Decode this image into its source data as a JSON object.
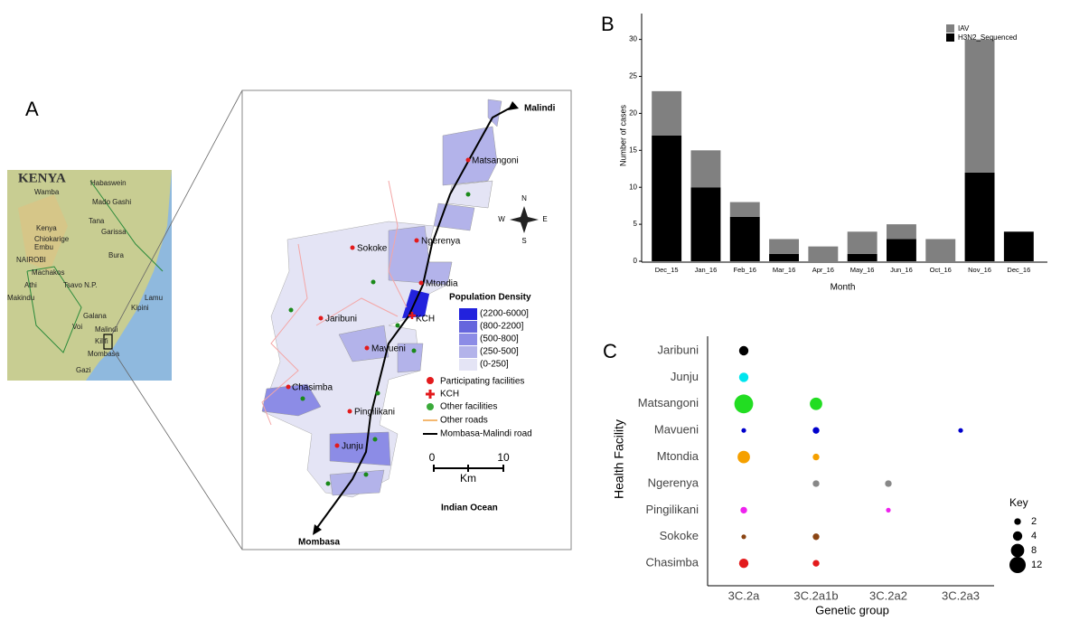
{
  "map": {
    "panel_label": "A",
    "inset": {
      "country": "KENYA",
      "places": [
        "Habaswein",
        "Wamba",
        "Mado Gashi",
        "Tana",
        "Kenya",
        "Garissa",
        "Chiokarige",
        "Embu",
        "Bura",
        "NAIROBI",
        "Machakos",
        "Athi",
        "Tsavo N.P.",
        "Makindu",
        "Lamu",
        "Kipini",
        "Galana",
        "Voi",
        "Malindi",
        "Kilifi",
        "Mombasa",
        "Gazi"
      ]
    },
    "main": {
      "places": [
        "Malindi",
        "Matsangoni",
        "Sokoke",
        "Ngerenya",
        "Mtondia",
        "KCH",
        "Jaribuni",
        "Mavueni",
        "Chasimba",
        "Pingilikani",
        "Junju",
        "Mombasa",
        "Indian Ocean"
      ],
      "compass": [
        "N",
        "S",
        "W",
        "E"
      ],
      "legend": {
        "title": "Population Density",
        "bins": [
          "(2200-6000]",
          "(800-2200]",
          "(500-800]",
          "(250-500]",
          "(0-250]"
        ],
        "items": [
          "Participating facilities",
          "KCH",
          "Other facilities",
          "Other roads",
          "Mombasa-Malindi road"
        ]
      },
      "scale": [
        "0",
        "10",
        "Km"
      ]
    }
  },
  "chart_data": [
    {
      "type": "bar",
      "stacked": true,
      "panel_label": "B",
      "x_label": "Month",
      "y_label": "Number of cases",
      "categories": [
        "Dec_15",
        "Jan_16",
        "Feb_16",
        "Mar_16",
        "Apr_16",
        "May_16",
        "Jun_16",
        "Oct_16",
        "Nov_16",
        "Dec_16"
      ],
      "series": [
        {
          "name": "H3N2_Sequenced",
          "color": "#000000",
          "values": [
            17,
            10,
            6,
            1,
            0,
            1,
            3,
            0,
            12,
            4
          ]
        },
        {
          "name": "IAV",
          "color": "#808080",
          "values": [
            6,
            5,
            2,
            2,
            2,
            3,
            2,
            3,
            18,
            0
          ]
        }
      ],
      "ylim": [
        0,
        33.5
      ],
      "yticks": [
        0,
        5,
        10,
        15,
        20,
        25,
        30
      ],
      "legend": "top-right"
    },
    {
      "type": "bubble",
      "panel_label": "C",
      "x_label": "Genetic group",
      "y_label": "Health Facility",
      "categories": [
        "3C.2a",
        "3C.2a1b",
        "3C.2a2",
        "3C.2a3"
      ],
      "series": [
        {
          "name": "Jaribuni",
          "color": "#000000",
          "values": [
            4,
            null,
            null,
            null
          ]
        },
        {
          "name": "Junju",
          "color": "#00e5ee",
          "values": [
            4,
            null,
            null,
            null
          ]
        },
        {
          "name": "Matsangoni",
          "color": "#22dd22",
          "values": [
            16,
            7,
            null,
            null
          ]
        },
        {
          "name": "Mavueni",
          "color": "#0000cc",
          "values": [
            1,
            2,
            null,
            1
          ]
        },
        {
          "name": "Mtondia",
          "color": "#f5a000",
          "values": [
            7,
            2,
            null,
            null
          ]
        },
        {
          "name": "Ngerenya",
          "color": "#888888",
          "values": [
            null,
            2,
            2,
            null
          ]
        },
        {
          "name": "Pingilikani",
          "color": "#ee22ee",
          "values": [
            2,
            null,
            1,
            null
          ]
        },
        {
          "name": "Sokoke",
          "color": "#8b4513",
          "values": [
            1,
            2,
            null,
            null
          ]
        },
        {
          "name": "Chasimba",
          "color": "#e31a1c",
          "values": [
            4,
            2,
            null,
            null
          ]
        }
      ],
      "size_key": {
        "title": "Key",
        "values": [
          2,
          4,
          8,
          12
        ]
      }
    }
  ]
}
